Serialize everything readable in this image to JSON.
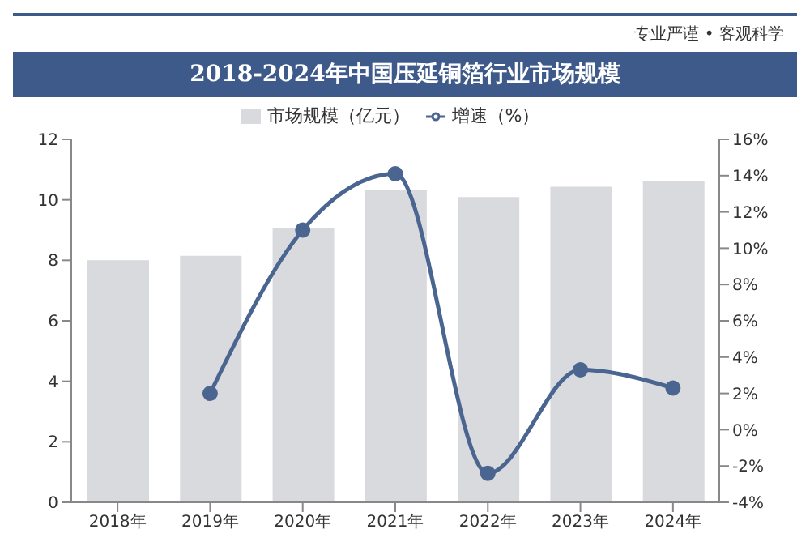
{
  "chart_data": {
    "type": "bar",
    "title": "2018-2024年中国压延铜箔行业市场规模",
    "annotations": [
      "专业严谨 • 客观科学"
    ],
    "categories": [
      "2018年",
      "2019年",
      "2020年",
      "2021年",
      "2022年",
      "2023年",
      "2024年"
    ],
    "series": [
      {
        "name": "市场规模（亿元）",
        "color": "#d9dadd",
        "values": [
          8.0,
          8.15,
          9.07,
          10.33,
          10.09,
          10.43,
          10.63
        ]
      },
      {
        "name": "增速（%）",
        "type": "line",
        "axis": "y2",
        "color": "#4a6590",
        "marker": "circle",
        "values": [
          null,
          2.0,
          11.0,
          14.1,
          -2.4,
          3.3,
          2.3
        ]
      }
    ],
    "ylim": [
      0,
      12
    ],
    "yticks": [
      0,
      2,
      4,
      6,
      8,
      10,
      12
    ],
    "y2lim": [
      -4,
      16
    ],
    "y2ticks": [
      {
        "value": -4,
        "label": "-4%"
      },
      {
        "value": -2,
        "label": "-2%"
      },
      {
        "value": 0,
        "label": "0%"
      },
      {
        "value": 2,
        "label": "2%"
      },
      {
        "value": 4,
        "label": "4%"
      },
      {
        "value": 6,
        "label": "6%"
      },
      {
        "value": 8,
        "label": "8%"
      },
      {
        "value": 10,
        "label": "10%"
      },
      {
        "value": 12,
        "label": "12%"
      },
      {
        "value": 14,
        "label": "14%"
      },
      {
        "value": 16,
        "label": "16%"
      }
    ],
    "grid": false,
    "legend": "top"
  }
}
